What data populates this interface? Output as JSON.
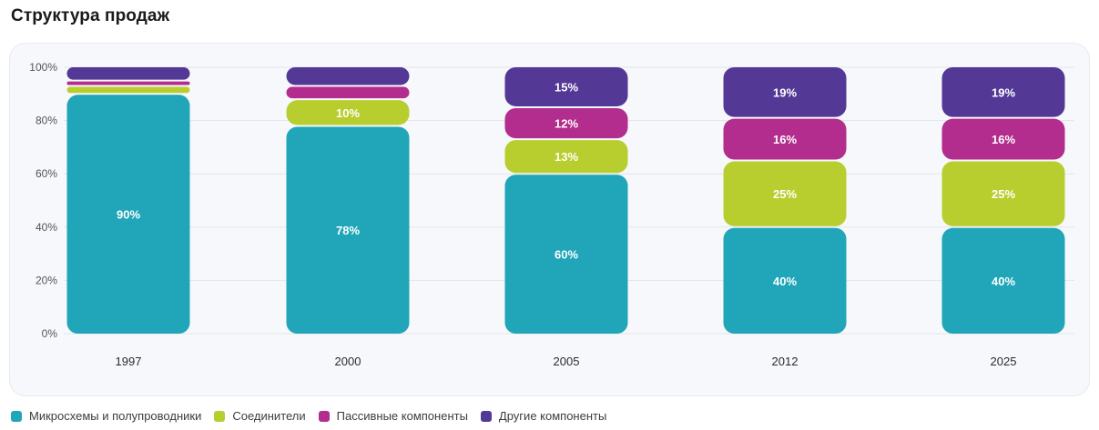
{
  "page": {
    "title": "Структура продаж"
  },
  "chart_data": {
    "type": "bar",
    "stacked": true,
    "categories": [
      "1997",
      "2000",
      "2005",
      "2012",
      "2025"
    ],
    "ylim": [
      0,
      100
    ],
    "yticks": [
      "0%",
      "20%",
      "40%",
      "60%",
      "80%",
      "100%"
    ],
    "grid": true,
    "legend_position": "bottom-left",
    "series": [
      {
        "name": "Микросхемы и полупроводники",
        "color": "#20a6b8",
        "values": [
          90,
          78,
          60,
          40,
          40
        ],
        "labels": [
          "90%",
          "78%",
          "60%",
          "40%",
          "40%"
        ]
      },
      {
        "name": "Соединители",
        "color": "#b8ce2f",
        "values": [
          3,
          10,
          13,
          25,
          25
        ],
        "labels": [
          "",
          "10%",
          "13%",
          "25%",
          "25%"
        ]
      },
      {
        "name": "Пассивные компоненты",
        "color": "#b22d8d",
        "values": [
          2,
          5,
          12,
          16,
          16
        ],
        "labels": [
          "",
          "",
          "12%",
          "16%",
          "16%"
        ]
      },
      {
        "name": "Другие компоненты",
        "color": "#533896",
        "values": [
          5,
          7,
          15,
          19,
          19
        ],
        "labels": [
          "",
          "",
          "15%",
          "19%",
          "19%"
        ]
      }
    ]
  }
}
